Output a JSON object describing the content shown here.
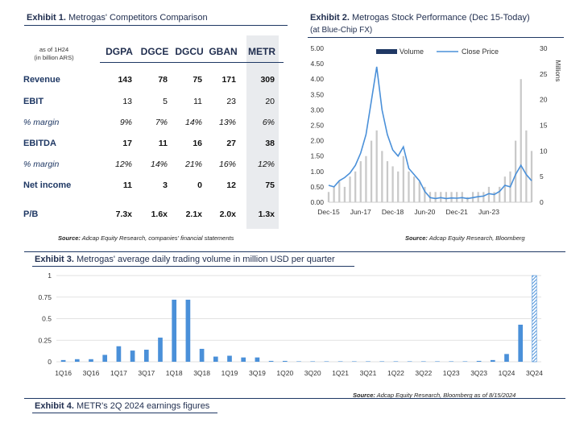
{
  "exhibit1": {
    "title_bold": "Exhibit 1.",
    "title_rest": " Metrogas' Competitors Comparison",
    "as_of_line1": "as of 1H24",
    "as_of_line2": "(in billion ARS)",
    "columns": [
      "DGPA",
      "DGCE",
      "DGCU",
      "GBAN",
      "METR"
    ],
    "rows": [
      {
        "label": "Revenue",
        "style": "bold",
        "values": [
          "143",
          "78",
          "75",
          "171",
          "309"
        ]
      },
      {
        "label": "EBIT",
        "style": "bold-label",
        "values": [
          "13",
          "5",
          "11",
          "23",
          "20"
        ]
      },
      {
        "label": "% margin",
        "style": "italic",
        "values": [
          "9%",
          "7%",
          "14%",
          "13%",
          "6%"
        ]
      },
      {
        "label": "EBITDA",
        "style": "bold",
        "values": [
          "17",
          "11",
          "16",
          "27",
          "38"
        ]
      },
      {
        "label": "% margin",
        "style": "italic",
        "values": [
          "12%",
          "14%",
          "21%",
          "16%",
          "12%"
        ]
      },
      {
        "label": "Net income",
        "style": "bold",
        "values": [
          "11",
          "3",
          "0",
          "12",
          "75"
        ]
      },
      {
        "label": "P/B",
        "style": "bold",
        "values": [
          "7.3x",
          "1.6x",
          "2.1x",
          "2.0x",
          "1.3x"
        ]
      }
    ],
    "source_bold": "Source:",
    "source_rest": " Adcap Equity Research, companies' financial statements"
  },
  "exhibit2": {
    "title_bold": "Exhibit 2.",
    "title_rest": " Metrogas Stock Performance (Dec 15-Today)",
    "subtitle": "(at Blue-Chip FX)",
    "legend": [
      "Volume",
      "Close Price"
    ],
    "right_axis_label": "Millions",
    "source_bold": "Source:",
    "source_rest": " Adcap Equity Research, Bloomberg",
    "colors": {
      "price": "#4a90d9",
      "volume": "#c9c9c9",
      "volume_legend": "#1f3864"
    }
  },
  "exhibit3": {
    "title_bold": "Exhibit 3.",
    "title_rest": " Metrogas' average daily trading volume in million USD per quarter",
    "source_bold": "Source:",
    "source_rest": " Adcap Equity Research, Bloomberg as of 8/15/2024",
    "colors": {
      "bar": "#4a90d9"
    }
  },
  "exhibit4": {
    "title_bold": "Exhibit 4.",
    "title_rest": " METR's 2Q 2024 earnings figures"
  },
  "chart_data": [
    {
      "type": "line",
      "title": "Metrogas Stock Performance (Dec 15-Today)",
      "x_tick_labels": [
        "Dec-15",
        "Jun-17",
        "Dec-18",
        "Jun-20",
        "Dec-21",
        "Jun-23"
      ],
      "x": [
        "Dec-15",
        "Mar-16",
        "Jun-16",
        "Sep-16",
        "Dec-16",
        "Mar-17",
        "Jun-17",
        "Aug-17",
        "Oct-17",
        "Dec-17",
        "Feb-18",
        "Apr-18",
        "Jun-18",
        "Sep-18",
        "Dec-18",
        "Mar-19",
        "Jun-19",
        "Sep-19",
        "Dec-19",
        "Mar-20",
        "Jun-20",
        "Sep-20",
        "Dec-20",
        "Mar-21",
        "Jun-21",
        "Sep-21",
        "Dec-21",
        "Mar-22",
        "Jun-22",
        "Sep-22",
        "Dec-22",
        "Mar-23",
        "Jun-23",
        "Sep-23",
        "Nov-23",
        "Jan-24",
        "Mar-24",
        "May-24",
        "Aug-24"
      ],
      "series": [
        {
          "name": "Close Price",
          "axis": "left",
          "values": [
            0.55,
            0.5,
            0.7,
            0.8,
            0.95,
            1.2,
            1.6,
            2.2,
            3.3,
            4.4,
            3.0,
            2.2,
            1.7,
            1.5,
            1.8,
            1.1,
            0.9,
            0.7,
            0.35,
            0.15,
            0.12,
            0.15,
            0.12,
            0.14,
            0.13,
            0.15,
            0.12,
            0.15,
            0.18,
            0.2,
            0.28,
            0.25,
            0.35,
            0.55,
            0.5,
            0.9,
            1.2,
            0.9,
            0.7
          ]
        },
        {
          "name": "Volume",
          "axis": "right",
          "values": [
            2,
            3,
            4,
            3,
            5,
            6,
            8,
            9,
            12,
            14,
            10,
            8,
            7,
            6,
            9,
            6,
            5,
            4,
            3,
            2,
            2,
            2,
            2,
            2,
            2,
            2,
            1,
            2,
            2,
            2,
            3,
            2,
            3,
            5,
            6,
            12,
            24,
            14,
            10
          ]
        }
      ],
      "left_axis": {
        "ticks": [
          "0.00",
          "0.50",
          "1.00",
          "1.50",
          "2.00",
          "2.50",
          "3.00",
          "3.50",
          "4.00",
          "4.50",
          "5.00"
        ],
        "ylim": [
          0,
          5
        ]
      },
      "right_axis": {
        "ticks": [
          "0",
          "5",
          "10",
          "15",
          "20",
          "25",
          "30"
        ],
        "ylim": [
          0,
          30
        ],
        "label": "Millions"
      },
      "legend": [
        "Volume",
        "Close Price"
      ],
      "legend_position": "top"
    },
    {
      "type": "bar",
      "title": "Metrogas' average daily trading volume in million USD per quarter",
      "categories": [
        "1Q16",
        "2Q16",
        "3Q16",
        "4Q16",
        "1Q17",
        "2Q17",
        "3Q17",
        "4Q17",
        "1Q18",
        "2Q18",
        "3Q18",
        "4Q18",
        "1Q19",
        "2Q19",
        "3Q19",
        "4Q19",
        "1Q20",
        "2Q20",
        "3Q20",
        "4Q20",
        "1Q21",
        "2Q21",
        "3Q21",
        "4Q21",
        "1Q22",
        "2Q22",
        "3Q22",
        "4Q22",
        "1Q23",
        "2Q23",
        "3Q23",
        "4Q23",
        "1Q24",
        "2Q24",
        "3Q24"
      ],
      "x_tick_labels": [
        "1Q16",
        "3Q16",
        "1Q17",
        "3Q17",
        "1Q18",
        "3Q18",
        "1Q19",
        "3Q19",
        "1Q20",
        "3Q20",
        "1Q21",
        "3Q21",
        "1Q22",
        "3Q22",
        "1Q23",
        "3Q23",
        "1Q24",
        "3Q24"
      ],
      "values": [
        0.02,
        0.03,
        0.03,
        0.08,
        0.18,
        0.13,
        0.14,
        0.28,
        0.72,
        0.72,
        0.15,
        0.06,
        0.07,
        0.05,
        0.05,
        0.01,
        0.01,
        0.005,
        0.005,
        0.005,
        0.005,
        0.005,
        0.005,
        0.005,
        0.005,
        0.005,
        0.005,
        0.005,
        0.005,
        0.005,
        0.01,
        0.02,
        0.09,
        0.43,
        1.0
      ],
      "highlight_last": true,
      "y_ticks": [
        "0",
        "0.25",
        "0.5",
        "0.75",
        "1"
      ],
      "ylim": [
        0,
        1
      ],
      "grid": true
    }
  ]
}
